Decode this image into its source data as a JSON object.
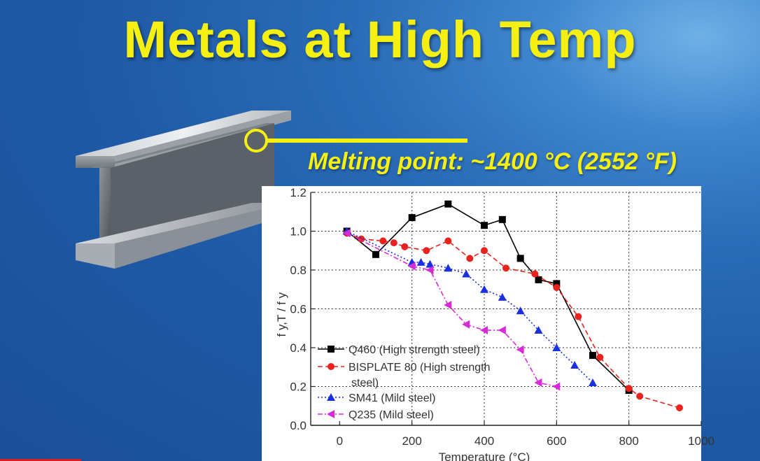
{
  "slide": {
    "title": "Metals at High Temp",
    "melting_point_text": "Melting point: ~1400 °C (2552 °F)"
  },
  "colors": {
    "background": "#1f5aa6",
    "title": "#f6ef12",
    "q460": "#000000",
    "bisplate": "#e8231d",
    "sm41": "#1a2fe0",
    "q235": "#d82bd8"
  },
  "chart_data": {
    "type": "line",
    "title": "",
    "xlabel": "Temperature (°C)",
    "ylabel": "f y,T / f y",
    "xlim": [
      -80,
      1000
    ],
    "ylim": [
      0.0,
      1.2
    ],
    "x_ticks": [
      0,
      200,
      400,
      600,
      800,
      1000
    ],
    "y_ticks": [
      0.0,
      0.2,
      0.4,
      0.6,
      0.8,
      1.0,
      1.2
    ],
    "x_tick_labels": [
      "0",
      "200",
      "400",
      "600",
      "800",
      "1000"
    ],
    "y_tick_labels": [
      "0.0",
      "0.2",
      "0.4",
      "0.6",
      "0.8",
      "1.0",
      "1.2"
    ],
    "grid": true,
    "legend_position": "bottom-left",
    "series": [
      {
        "name": "Q460 (High strength steel)",
        "marker": "square",
        "line": "solid",
        "color": "#000000",
        "x": [
          20,
          100,
          200,
          300,
          400,
          450,
          500,
          550,
          600,
          700,
          800
        ],
        "y": [
          1.0,
          0.88,
          1.07,
          1.14,
          1.03,
          1.06,
          0.86,
          0.75,
          0.73,
          0.36,
          0.18
        ]
      },
      {
        "name": "BISPLATE 80 (High strength steel)",
        "marker": "circle",
        "line": "dashed",
        "color": "#e8231d",
        "x": [
          20,
          60,
          120,
          150,
          180,
          240,
          300,
          360,
          400,
          460,
          540,
          600,
          660,
          720,
          800,
          830,
          940
        ],
        "y": [
          0.99,
          0.96,
          0.95,
          0.94,
          0.92,
          0.9,
          0.95,
          0.86,
          0.9,
          0.81,
          0.78,
          0.71,
          0.56,
          0.35,
          0.19,
          0.15,
          0.09
        ]
      },
      {
        "name": "SM41 (Mild steel)",
        "marker": "triangle-up",
        "line": "dotted",
        "color": "#1a2fe0",
        "x": [
          20,
          200,
          225,
          250,
          300,
          350,
          400,
          450,
          500,
          550,
          600,
          650,
          700
        ],
        "y": [
          1.0,
          0.84,
          0.84,
          0.83,
          0.81,
          0.78,
          0.7,
          0.66,
          0.59,
          0.49,
          0.4,
          0.31,
          0.22
        ]
      },
      {
        "name": "Q235 (Mild steel)",
        "marker": "triangle-left",
        "line": "dashdot",
        "color": "#d82bd8",
        "x": [
          20,
          200,
          250,
          300,
          350,
          400,
          450,
          500,
          550,
          600
        ],
        "y": [
          0.99,
          0.82,
          0.8,
          0.62,
          0.52,
          0.49,
          0.49,
          0.39,
          0.22,
          0.2
        ]
      }
    ],
    "legend_lines": [
      [
        "Q460 (High strength steel)"
      ],
      [
        "BISPLATE 80 (High strength",
        "steel)"
      ],
      [
        "SM41 (Mild steel)"
      ],
      [
        "Q235 (Mild steel)"
      ]
    ]
  }
}
